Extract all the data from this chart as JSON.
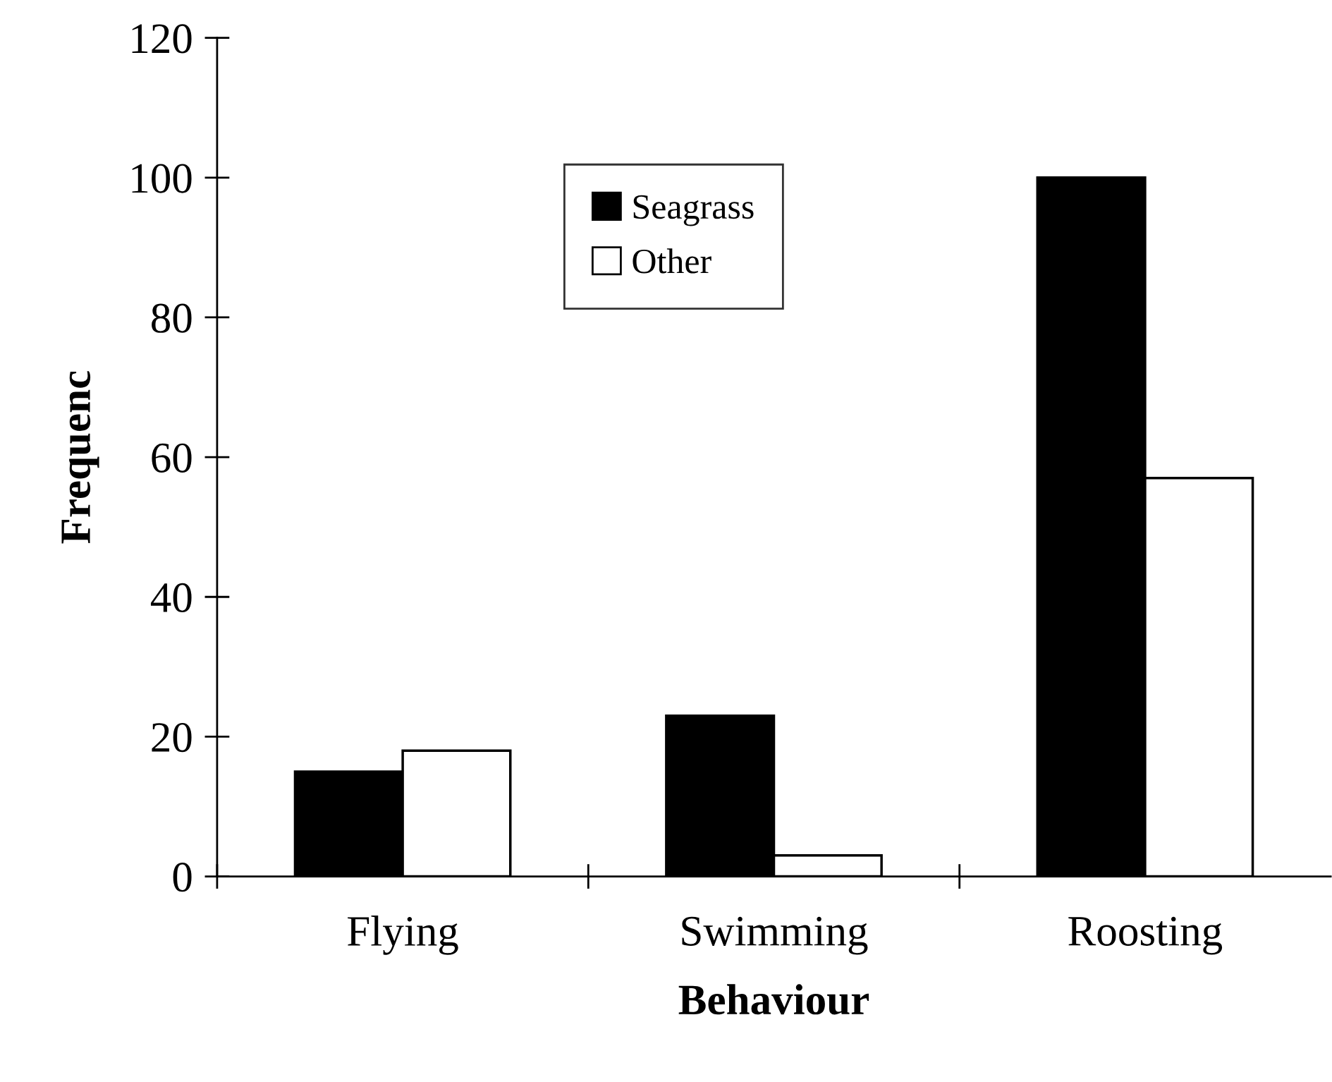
{
  "chart_data": {
    "type": "bar",
    "xlabel": "Behaviour",
    "ylabel": "Frequenc",
    "categories": [
      "Flying",
      "Swimming",
      "Roosting"
    ],
    "series": [
      {
        "name": "Seagrass",
        "color": "#000000",
        "values": [
          15,
          23,
          100
        ]
      },
      {
        "name": "Other",
        "color": "#ffffff",
        "values": [
          18,
          3,
          57
        ]
      }
    ],
    "ylim": [
      0,
      120
    ],
    "yticks": [
      0,
      20,
      40,
      60,
      80,
      100,
      120
    ],
    "legend": "top",
    "grid": false
  }
}
